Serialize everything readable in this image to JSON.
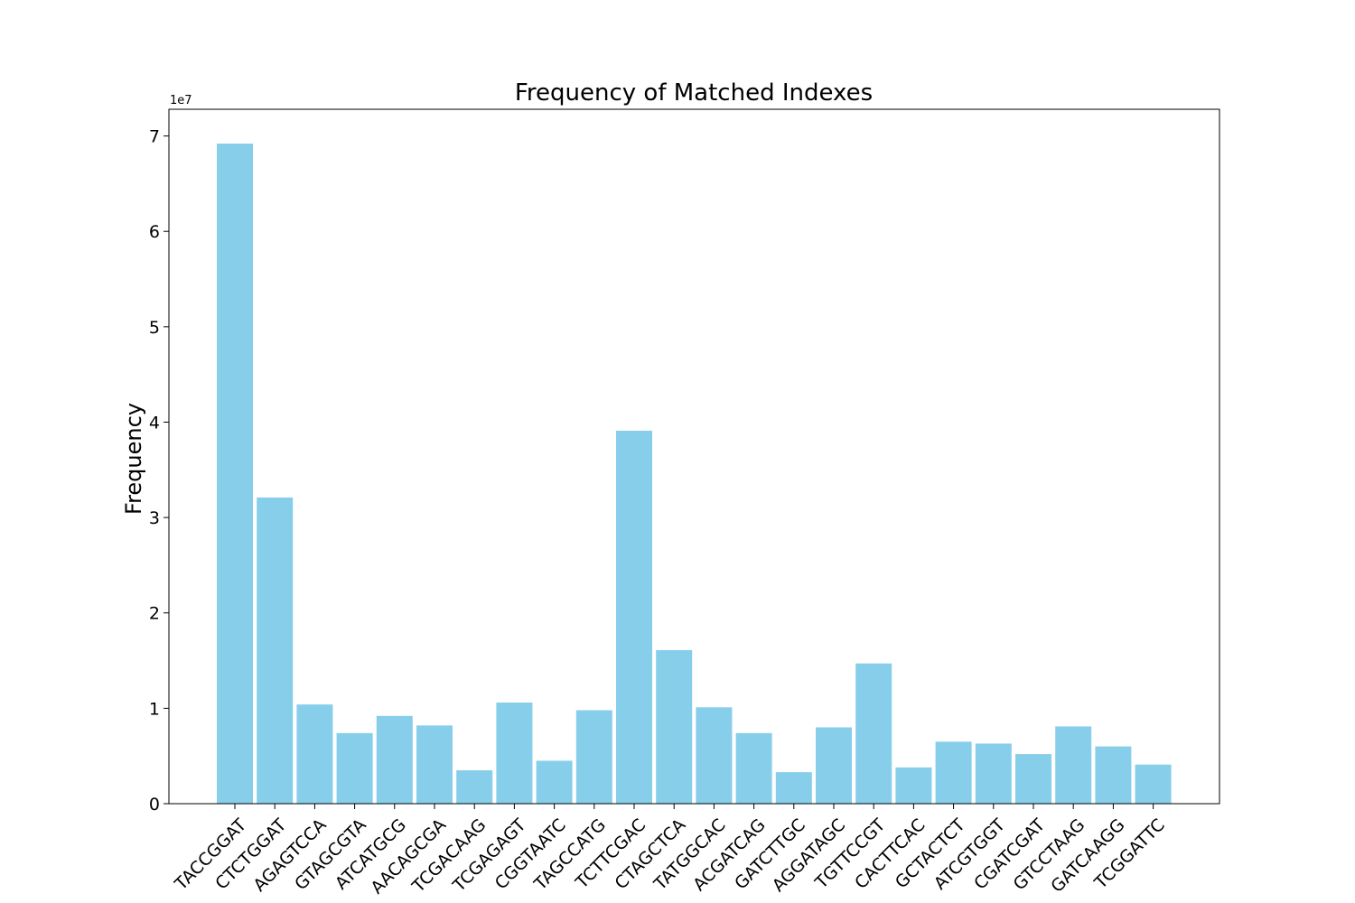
{
  "chart_data": {
    "type": "bar",
    "title": "Frequency of Matched Indexes",
    "xlabel": "",
    "ylabel": "Frequency",
    "y_offset_label": "1e7",
    "ylim": [
      0,
      7.28
    ],
    "yticks": [
      0,
      1,
      2,
      3,
      4,
      5,
      6,
      7
    ],
    "grid": false,
    "bar_color": "#87CEEB",
    "categories": [
      "TACCGGAT",
      "CTCTGGAT",
      "AGAGTCCA",
      "GTAGCGTA",
      "ATCATGCG",
      "AACAGCGA",
      "TCGACAAG",
      "TCGAGAGT",
      "CGGTAATC",
      "TAGCCATG",
      "TCTTCGAC",
      "CTAGCTCA",
      "TATGGCAC",
      "ACGATCAG",
      "GATCTTGC",
      "AGGATAGC",
      "TGTTCCGT",
      "CACTTCAC",
      "GCTACTCT",
      "ATCGTGGT",
      "CGATCGAT",
      "GTCCTAAG",
      "GATCAAGG",
      "TCGGATTC"
    ],
    "values": [
      6.92,
      3.21,
      1.04,
      0.74,
      0.92,
      0.82,
      0.35,
      1.06,
      0.45,
      0.98,
      3.91,
      1.61,
      1.01,
      0.74,
      0.33,
      0.8,
      1.47,
      0.38,
      0.65,
      0.63,
      0.52,
      0.81,
      0.6,
      0.41
    ]
  }
}
